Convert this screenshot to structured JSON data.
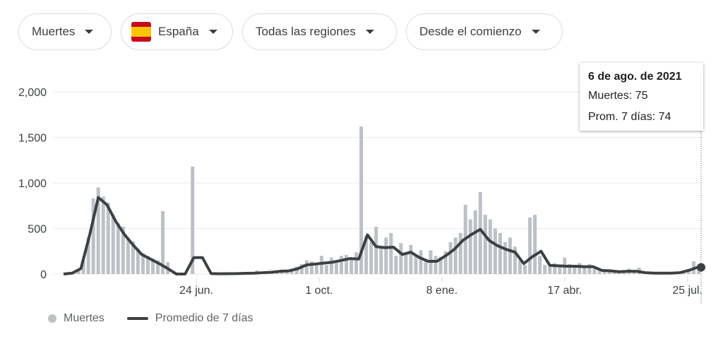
{
  "filters": {
    "metric": "Muertes",
    "country": "España",
    "region": "Todas las regiones",
    "range": "Desde el comienzo"
  },
  "tooltip": {
    "date": "6 de ago. de 2021",
    "deaths": "Muertes: 75",
    "avg": "Prom. 7 días: 74"
  },
  "legend": {
    "bars": "Muertes",
    "line": "Promedio de 7 días"
  },
  "colors": {
    "bars": "#bdc1c6",
    "line": "#3c4043",
    "grid": "#e8eaed"
  },
  "chart_data": {
    "type": "bar+line",
    "title": "",
    "ylim": [
      0,
      2000
    ],
    "yticks": [
      {
        "v": 0,
        "label": "0"
      },
      {
        "v": 500,
        "label": "500"
      },
      {
        "v": 1000,
        "label": "1,000"
      },
      {
        "v": 1500,
        "label": "1,500"
      },
      {
        "v": 2000,
        "label": "2,000"
      }
    ],
    "x_range_days": [
      0,
      514
    ],
    "xticks": [
      {
        "day": 107,
        "label": "24 jun."
      },
      {
        "day": 206,
        "label": "1 oct."
      },
      {
        "day": 305,
        "label": "8 ene."
      },
      {
        "day": 404,
        "label": "17 abr."
      },
      {
        "day": 503,
        "label": "25 jul."
      }
    ],
    "series": [
      {
        "name": "Muertes",
        "type": "bar",
        "step_days": 4,
        "values": [
          0,
          0,
          10,
          40,
          150,
          400,
          830,
          950,
          850,
          780,
          650,
          560,
          520,
          400,
          360,
          280,
          230,
          200,
          170,
          150,
          690,
          130,
          0,
          0,
          0,
          0,
          1180,
          0,
          0,
          0,
          0,
          2,
          0,
          5,
          3,
          0,
          10,
          15,
          20,
          40,
          5,
          30,
          10,
          40,
          50,
          30,
          60,
          80,
          110,
          150,
          140,
          120,
          200,
          100,
          180,
          150,
          200,
          210,
          180,
          240,
          1620,
          420,
          350,
          520,
          300,
          400,
          450,
          200,
          340,
          240,
          320,
          200,
          260,
          150,
          260,
          200,
          190,
          250,
          350,
          400,
          450,
          760,
          600,
          700,
          900,
          650,
          600,
          500,
          450,
          350,
          400,
          300,
          150,
          100,
          620,
          650,
          200,
          100,
          80,
          120,
          90,
          180,
          110,
          80,
          120,
          90,
          110,
          60,
          40,
          50,
          30,
          20,
          40,
          20,
          60,
          30,
          70,
          20,
          15,
          10,
          15,
          10,
          10,
          10,
          20,
          30,
          50,
          140,
          75
        ]
      },
      {
        "name": "Promedio de 7 días",
        "type": "line",
        "step_days": 7,
        "values": [
          0,
          10,
          60,
          425,
          840,
          760,
          580,
          435,
          320,
          215,
          165,
          115,
          60,
          0,
          0,
          180,
          180,
          5,
          3,
          4,
          5,
          8,
          10,
          15,
          20,
          30,
          35,
          60,
          100,
          110,
          120,
          130,
          150,
          170,
          165,
          430,
          300,
          290,
          295,
          215,
          240,
          180,
          140,
          140,
          200,
          270,
          370,
          435,
          490,
          370,
          310,
          270,
          240,
          115,
          190,
          250,
          95,
          90,
          85,
          85,
          80,
          80,
          40,
          35,
          25,
          30,
          30,
          15,
          10,
          10,
          10,
          15,
          40,
          74
        ]
      }
    ]
  }
}
